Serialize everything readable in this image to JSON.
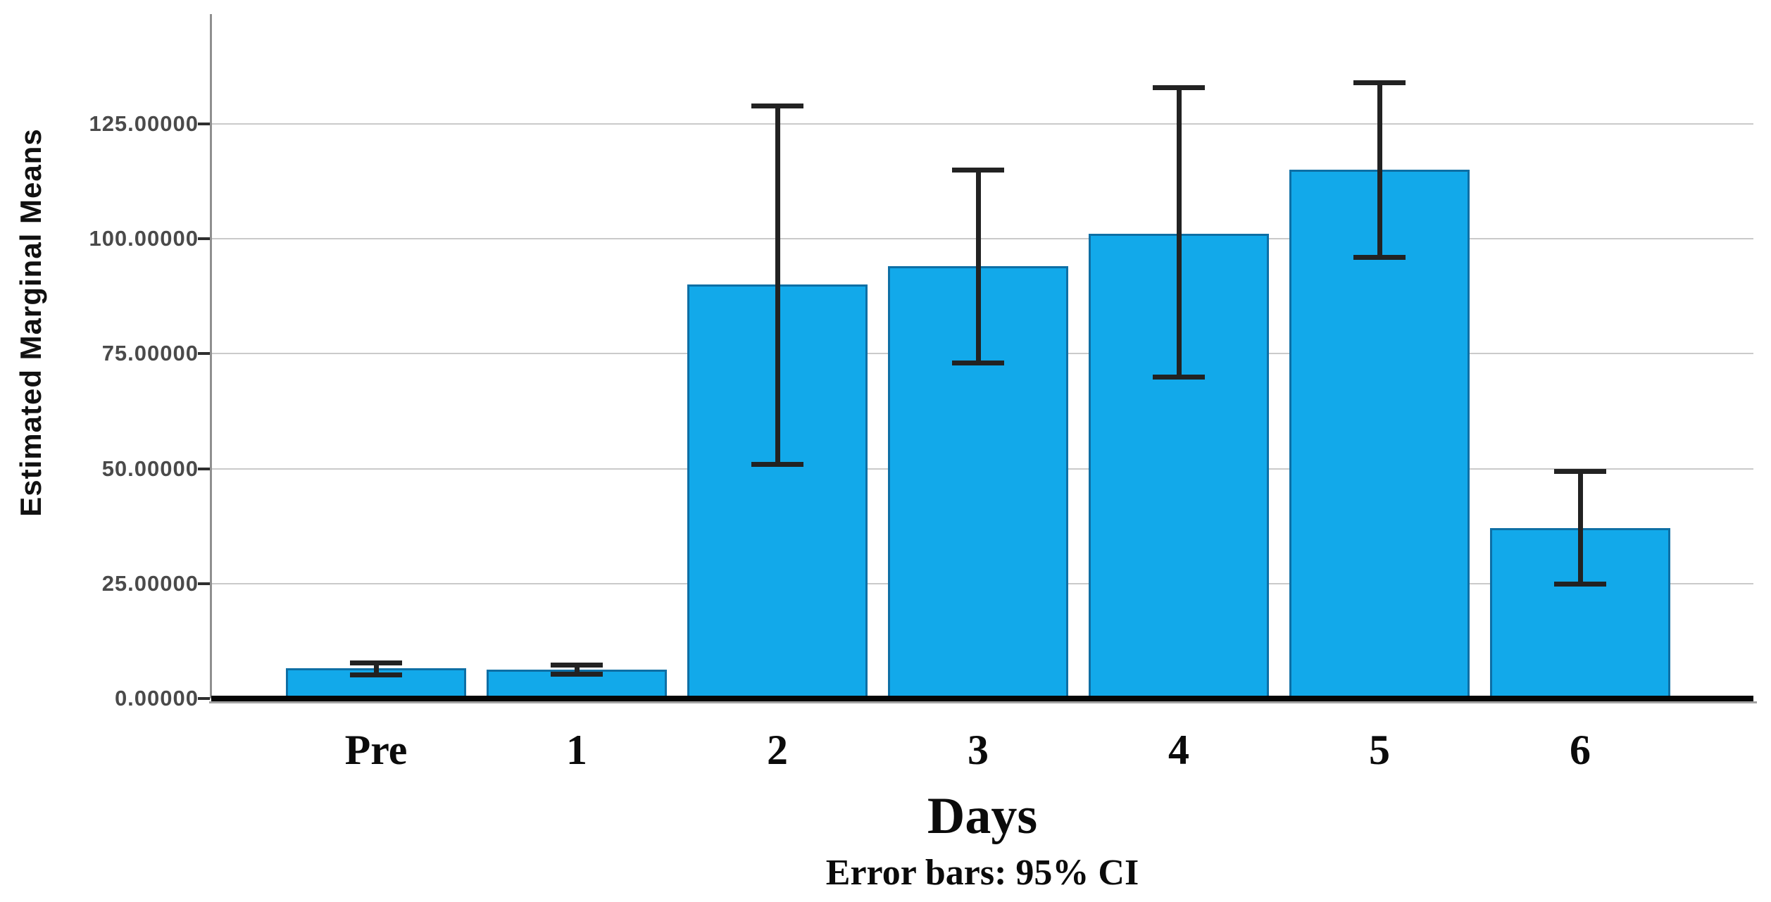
{
  "figure": {
    "background": "#ffffff"
  },
  "chart_data": {
    "type": "bar",
    "title": "",
    "xlabel": "Days",
    "ylabel": "Estimated Marginal Means",
    "caption": "Error bars: 95% CI",
    "categories": [
      "Pre",
      "1",
      "2",
      "3",
      "4",
      "5",
      "6"
    ],
    "series": [
      {
        "name": "Estimated Marginal Means",
        "values": [
          6.6,
          6.3,
          90,
          94,
          101,
          115,
          37
        ]
      }
    ],
    "error_bars": {
      "kind": "95% CI",
      "low": [
        5.2,
        5.3,
        51,
        73,
        70,
        96,
        25
      ],
      "high": [
        7.8,
        7.4,
        129,
        115,
        133,
        134,
        49.5
      ]
    },
    "y_ticks": [
      "0.00000",
      "25.00000",
      "50.00000",
      "75.00000",
      "100.00000",
      "125.00000"
    ],
    "y_tick_values": [
      0,
      25,
      50,
      75,
      100,
      125
    ],
    "ylim": [
      0,
      148
    ],
    "grid": true,
    "legend": "none",
    "colors": {
      "bar_fill": "#12a9ea",
      "bar_edge": "#0e6fa5",
      "error_bar": "#222222",
      "gridline": "#cacaca",
      "y_axis_line": "#8f8f8f",
      "baseline": "#050505",
      "tick_label": "#4a4a4a",
      "text": "#0b0b0b"
    }
  }
}
